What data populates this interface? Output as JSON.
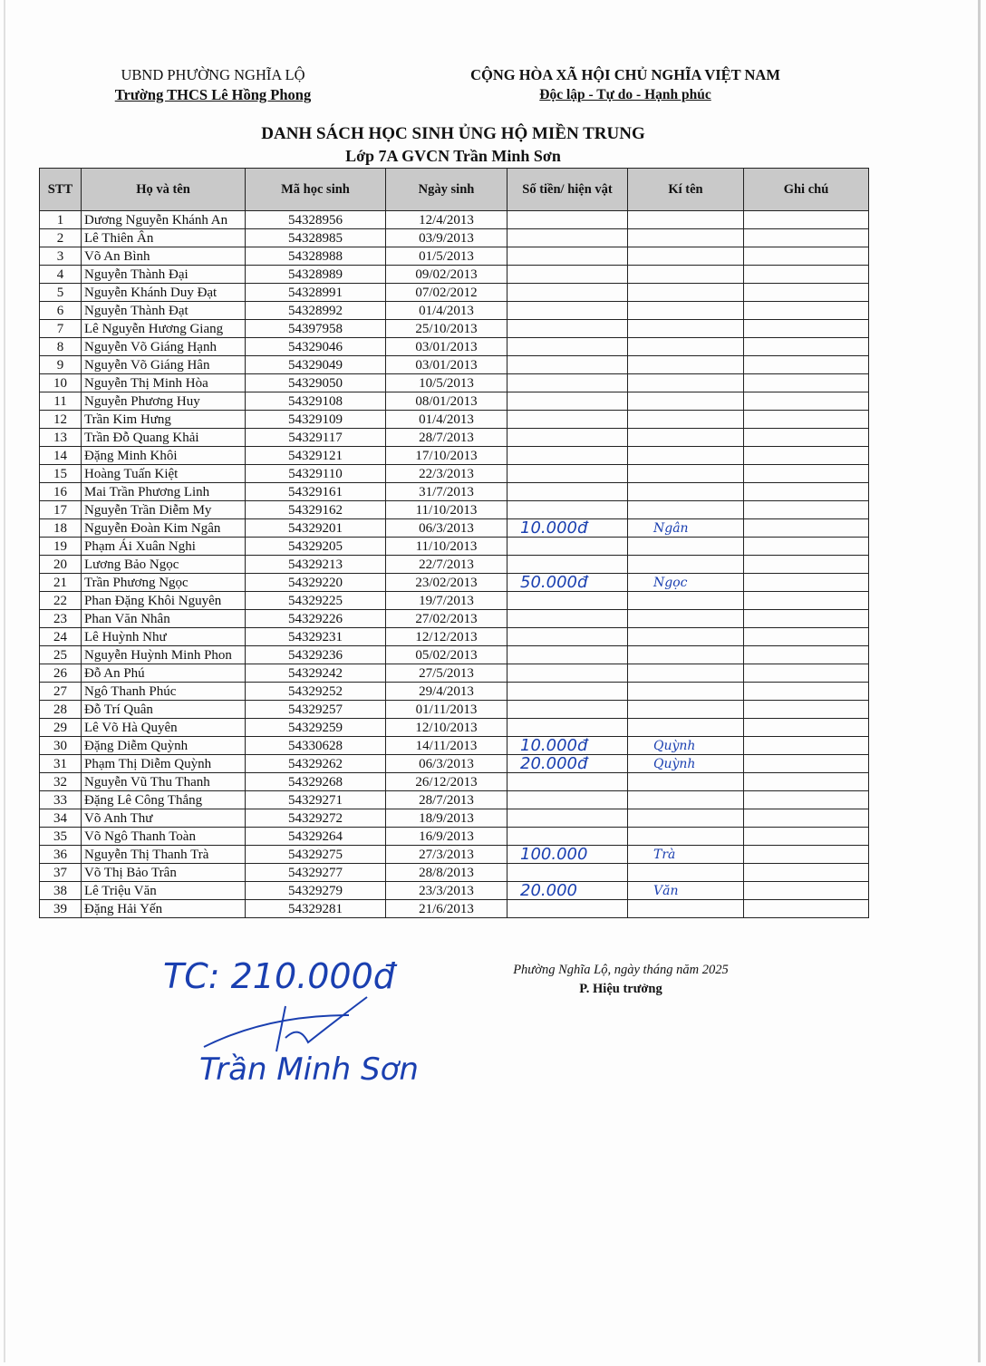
{
  "header": {
    "left_line1": "UBND PHƯỜNG NGHĨA LỘ",
    "left_line2": "Trường THCS Lê Hồng Phong",
    "right_line1": "CỘNG HÒA XÃ HỘI CHỦ NGHĨA VIỆT NAM",
    "right_line2": "Độc lập - Tự do - Hạnh phúc"
  },
  "title": "DANH SÁCH HỌC SINH ỦNG HỘ MIỀN TRUNG",
  "subtitle": "Lớp 7A GVCN Trần Minh Sơn",
  "table": {
    "columns": [
      "STT",
      "Họ và tên",
      "Mã học sinh",
      "Ngày sinh",
      "Số tiền/ hiện vật",
      "Kí tên",
      "Ghi chú"
    ],
    "rows": [
      [
        "1",
        "Dương Nguyễn Khánh An",
        "54328956",
        "12/4/2013",
        "",
        "",
        ""
      ],
      [
        "2",
        "Lê Thiên Ân",
        "54328985",
        "03/9/2013",
        "",
        "",
        ""
      ],
      [
        "3",
        "Võ An Bình",
        "54328988",
        "01/5/2013",
        "",
        "",
        ""
      ],
      [
        "4",
        "Nguyễn Thành Đại",
        "54328989",
        "09/02/2013",
        "",
        "",
        ""
      ],
      [
        "5",
        "Nguyễn Khánh Duy Đạt",
        "54328991",
        "07/02/2012",
        "",
        "",
        ""
      ],
      [
        "6",
        "Nguyễn Thành Đạt",
        "54328992",
        "01/4/2013",
        "",
        "",
        ""
      ],
      [
        "7",
        "Lê Nguyễn Hương Giang",
        "54397958",
        "25/10/2013",
        "",
        "",
        ""
      ],
      [
        "8",
        "Nguyễn Võ Giáng Hạnh",
        "54329046",
        "03/01/2013",
        "",
        "",
        ""
      ],
      [
        "9",
        "Nguyễn Võ Giáng Hân",
        "54329049",
        "03/01/2013",
        "",
        "",
        ""
      ],
      [
        "10",
        "Nguyễn Thị Minh Hòa",
        "54329050",
        "10/5/2013",
        "",
        "",
        ""
      ],
      [
        "11",
        "Nguyễn Phương Huy",
        "54329108",
        "08/01/2013",
        "",
        "",
        ""
      ],
      [
        "12",
        "Trần Kim Hưng",
        "54329109",
        "01/4/2013",
        "",
        "",
        ""
      ],
      [
        "13",
        "Trần Đỗ Quang Khải",
        "54329117",
        "28/7/2013",
        "",
        "",
        ""
      ],
      [
        "14",
        "Đặng Minh Khôi",
        "54329121",
        "17/10/2013",
        "",
        "",
        ""
      ],
      [
        "15",
        "Hoàng Tuấn Kiệt",
        "54329110",
        "22/3/2013",
        "",
        "",
        ""
      ],
      [
        "16",
        "Mai Trần Phương Linh",
        "54329161",
        "31/7/2013",
        "",
        "",
        ""
      ],
      [
        "17",
        "Nguyễn Trần Diễm My",
        "54329162",
        "11/10/2013",
        "",
        "",
        ""
      ],
      [
        "18",
        "Nguyễn Đoàn Kim Ngân",
        "54329201",
        "06/3/2013",
        "10.000đ",
        "Ngân",
        ""
      ],
      [
        "19",
        "Phạm Ái Xuân Nghi",
        "54329205",
        "11/10/2013",
        "",
        "",
        ""
      ],
      [
        "20",
        "Lương Bảo Ngọc",
        "54329213",
        "22/7/2013",
        "",
        "",
        ""
      ],
      [
        "21",
        "Trần Phương Ngọc",
        "54329220",
        "23/02/2013",
        "50.000đ",
        "Ngọc",
        ""
      ],
      [
        "22",
        "Phan Đặng Khôi Nguyên",
        "54329225",
        "19/7/2013",
        "",
        "",
        ""
      ],
      [
        "23",
        "Phan Văn Nhân",
        "54329226",
        "27/02/2013",
        "",
        "",
        ""
      ],
      [
        "24",
        "Lê Huỳnh Như",
        "54329231",
        "12/12/2013",
        "",
        "",
        ""
      ],
      [
        "25",
        "Nguyễn Huỳnh Minh Phon",
        "54329236",
        "05/02/2013",
        "",
        "",
        ""
      ],
      [
        "26",
        "Đỗ An Phú",
        "54329242",
        "27/5/2013",
        "",
        "",
        ""
      ],
      [
        "27",
        "Ngô Thanh Phúc",
        "54329252",
        "29/4/2013",
        "",
        "",
        ""
      ],
      [
        "28",
        "Đỗ Trí Quân",
        "54329257",
        "01/11/2013",
        "",
        "",
        ""
      ],
      [
        "29",
        "Lê Võ Hà Quyên",
        "54329259",
        "12/10/2013",
        "",
        "",
        ""
      ],
      [
        "30",
        "Đặng Diễm Quỳnh",
        "54330628",
        "14/11/2013",
        "10.000đ",
        "Quỳnh",
        ""
      ],
      [
        "31",
        "Phạm Thị Diễm Quỳnh",
        "54329262",
        "06/3/2013",
        "20.000đ",
        "Quỳnh",
        ""
      ],
      [
        "32",
        "Nguyễn Vũ Thu Thanh",
        "54329268",
        "26/12/2013",
        "",
        "",
        ""
      ],
      [
        "33",
        "Đặng Lê Công Thắng",
        "54329271",
        "28/7/2013",
        "",
        "",
        ""
      ],
      [
        "34",
        "Võ Anh Thư",
        "54329272",
        "18/9/2013",
        "",
        "",
        ""
      ],
      [
        "35",
        "Võ Ngô Thanh Toàn",
        "54329264",
        "16/9/2013",
        "",
        "",
        ""
      ],
      [
        "36",
        "Nguyễn Thị Thanh Trà",
        "54329275",
        "27/3/2013",
        "100.000",
        "Trà",
        ""
      ],
      [
        "37",
        "Võ Thị Bảo Trân",
        "54329277",
        "28/8/2013",
        "",
        "",
        ""
      ],
      [
        "38",
        "Lê Triệu Văn",
        "54329279",
        "23/3/2013",
        "20.000",
        "Văn",
        ""
      ],
      [
        "39",
        "Đặng Hải Yến",
        "54329281",
        "21/6/2013",
        "",
        "",
        ""
      ]
    ]
  },
  "footer": {
    "place_date": "Phường Nghĩa Lộ, ngày  tháng  năm 2025",
    "signer_title": "P. Hiệu trưởng",
    "handwritten_total": "TC: 210.000đ",
    "handwritten_signature": "Trần Minh Sơn"
  },
  "colors": {
    "ink_blue": "#1a3fb0",
    "header_fill": "#c9c9c9"
  }
}
